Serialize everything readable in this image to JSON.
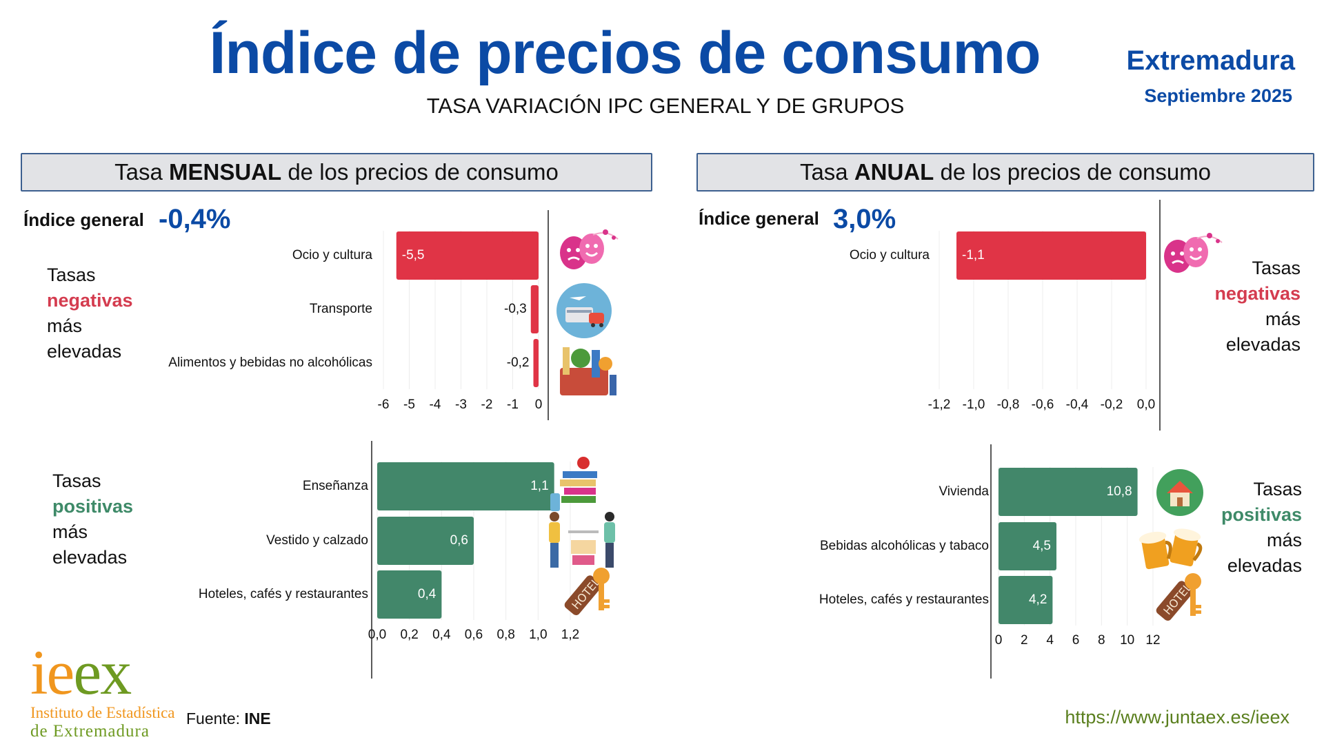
{
  "header": {
    "title": "Índice de precios de consumo",
    "subtitle": "TASA VARIACIÓN IPC GENERAL Y DE GRUPOS",
    "region": "Extremadura",
    "period": "Septiembre 2025"
  },
  "monthly": {
    "header_pre": "Tasa ",
    "header_bold": "MENSUAL",
    "header_post": " de los precios de consumo",
    "general_label": "Índice general",
    "general_value": "-0,4%",
    "neg_text": {
      "l1": "Tasas",
      "l2": "negativas",
      "l3": "más",
      "l4": "elevadas"
    },
    "pos_text": {
      "l1": "Tasas",
      "l2": "positivas",
      "l3": "más",
      "l4": "elevadas"
    }
  },
  "annual": {
    "header_pre": "Tasa ",
    "header_bold": "ANUAL",
    "header_post": " de los precios de consumo",
    "general_label": "Índice general",
    "general_value": "3,0%",
    "neg_text": {
      "l1": "Tasas",
      "l2": "negativas",
      "l3": "más",
      "l4": "elevadas"
    },
    "pos_text": {
      "l1": "Tasas",
      "l2": "positivas",
      "l3": "más",
      "l4": "elevadas"
    }
  },
  "icons": {
    "theater": "theater-masks-icon",
    "transport": "transport-icon",
    "groceries": "groceries-icon",
    "education": "books-icon",
    "clothing": "clothing-shop-icon",
    "hotel": "hotel-key-icon",
    "house": "house-icon",
    "beer": "beer-mugs-icon"
  },
  "colors": {
    "negative": "#e03446",
    "positive": "#42876a",
    "accent": "#0b4aa5"
  },
  "footer": {
    "logo_main": "ieex",
    "logo_line1": "Instituto de Estadística",
    "logo_line2": "de Extremadura",
    "source_label": "Fuente: ",
    "source_value": "INE",
    "url": "https://www.juntaex.es/ieex"
  },
  "chart_data": [
    {
      "id": "monthly-negative",
      "type": "bar",
      "orientation": "horizontal",
      "title": "Tasa MENSUAL - Tasas negativas más elevadas",
      "categories": [
        "Ocio y cultura",
        "Transporte",
        "Alimentos y bebidas no alcohólicas"
      ],
      "values": [
        -5.5,
        -0.3,
        -0.2
      ],
      "labels": [
        "-5,5",
        "-0,3",
        "-0,2"
      ],
      "xlim": [
        -6,
        0
      ],
      "ticks": [
        -6,
        -5,
        -4,
        -3,
        -2,
        -1,
        0
      ],
      "tick_labels": [
        "-6",
        "-5",
        "-4",
        "-3",
        "-2",
        "-1",
        "0"
      ],
      "grid": true
    },
    {
      "id": "monthly-positive",
      "type": "bar",
      "orientation": "horizontal",
      "title": "Tasa MENSUAL - Tasas positivas más elevadas",
      "categories": [
        "Enseñanza",
        "Vestido y calzado",
        "Hoteles, cafés y restaurantes"
      ],
      "values": [
        1.1,
        0.6,
        0.4
      ],
      "labels": [
        "1,1",
        "0,6",
        "0,4"
      ],
      "xlim": [
        0,
        1.2
      ],
      "ticks": [
        0,
        0.2,
        0.4,
        0.6,
        0.8,
        1.0,
        1.2
      ],
      "tick_labels": [
        "0,0",
        "0,2",
        "0,4",
        "0,6",
        "0,8",
        "1,0",
        "1,2"
      ],
      "grid": true
    },
    {
      "id": "annual-negative",
      "type": "bar",
      "orientation": "horizontal",
      "title": "Tasa ANUAL - Tasas negativas más elevadas",
      "categories": [
        "Ocio y cultura"
      ],
      "values": [
        -1.1
      ],
      "labels": [
        "-1,1"
      ],
      "xlim": [
        -1.2,
        0
      ],
      "ticks": [
        -1.2,
        -1.0,
        -0.8,
        -0.6,
        -0.4,
        -0.2,
        0
      ],
      "tick_labels": [
        "-1,2",
        "-1,0",
        "-0,8",
        "-0,6",
        "-0,4",
        "-0,2",
        "0,0"
      ],
      "grid": true
    },
    {
      "id": "annual-positive",
      "type": "bar",
      "orientation": "horizontal",
      "title": "Tasa ANUAL - Tasas positivas más elevadas",
      "categories": [
        "Vivienda",
        "Bebidas alcohólicas y tabaco",
        "Hoteles, cafés y restaurantes"
      ],
      "values": [
        10.8,
        4.5,
        4.2
      ],
      "labels": [
        "10,8",
        "4,5",
        "4,2"
      ],
      "xlim": [
        0,
        12
      ],
      "ticks": [
        0,
        2,
        4,
        6,
        8,
        10,
        12
      ],
      "tick_labels": [
        "0",
        "2",
        "4",
        "6",
        "8",
        "10",
        "12"
      ],
      "grid": true
    }
  ]
}
